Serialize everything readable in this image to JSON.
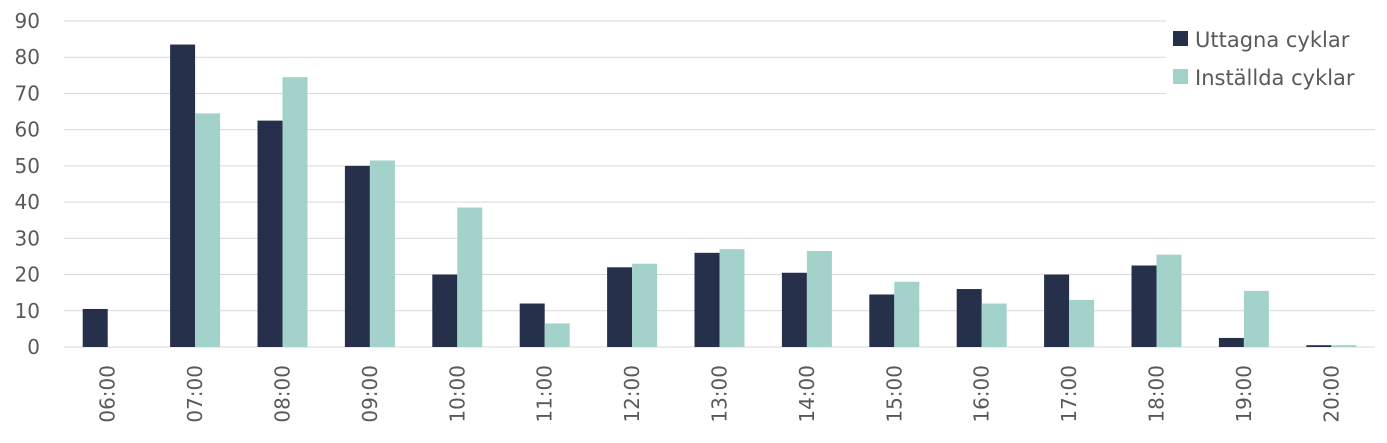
{
  "chart_data": {
    "type": "bar",
    "title": "",
    "xlabel": "",
    "ylabel": "",
    "categories": [
      "06:00",
      "07:00",
      "08:00",
      "09:00",
      "10:00",
      "11:00",
      "12:00",
      "13:00",
      "14:00",
      "15:00",
      "16:00",
      "17:00",
      "18:00",
      "19:00",
      "20:00"
    ],
    "series": [
      {
        "name": "Uttagna cyklar",
        "color": "#26304a",
        "values": [
          10.5,
          83.5,
          62.5,
          50,
          20,
          12,
          22,
          26,
          20.5,
          14.5,
          16,
          20,
          22.5,
          2.5,
          0.5
        ]
      },
      {
        "name": "Inställda cyklar",
        "color": "#a3d2cb",
        "values": [
          0,
          64.5,
          74.5,
          51.5,
          38.5,
          6.5,
          23,
          27,
          26.5,
          18,
          12,
          13,
          25.5,
          15.5,
          0.5
        ]
      }
    ],
    "ylim": [
      0,
      90
    ],
    "yticks": [
      "0",
      "10",
      "20",
      "30",
      "40",
      "50",
      "60",
      "70",
      "80",
      "90"
    ],
    "grid": true,
    "legend": "top-right"
  }
}
